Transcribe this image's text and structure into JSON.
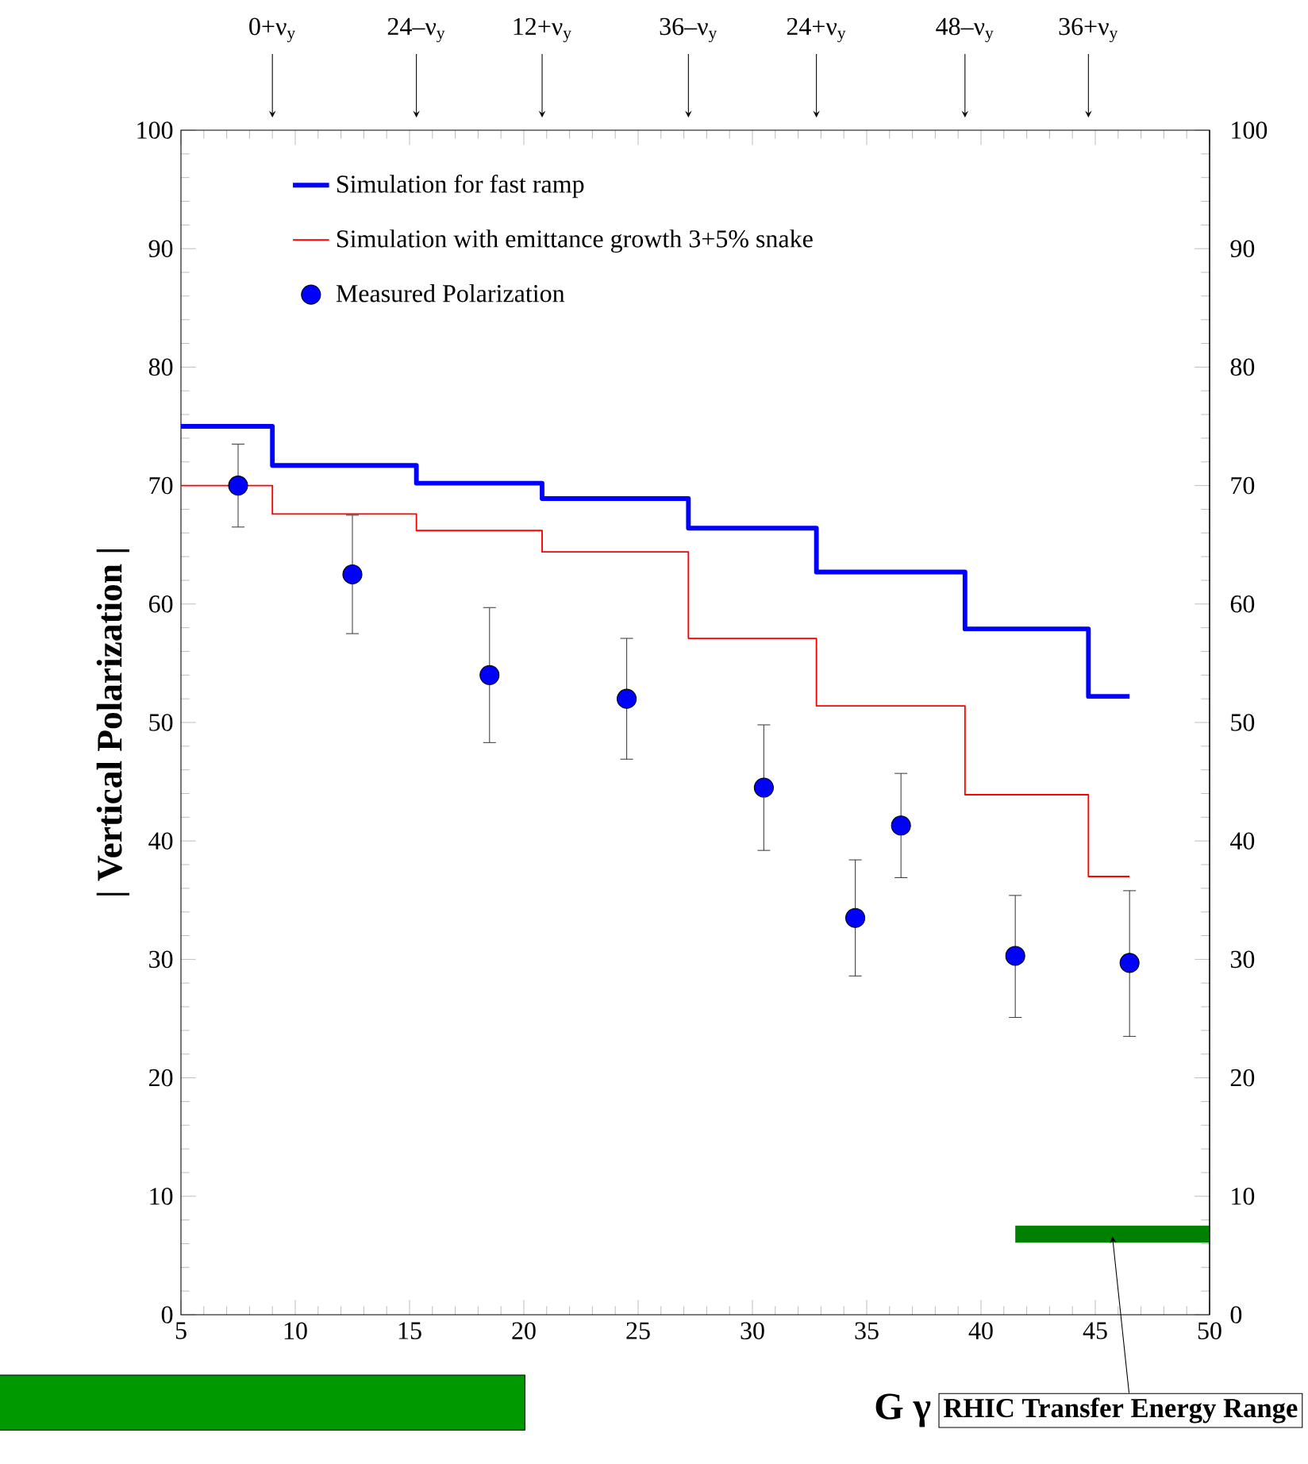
{
  "chart_data": {
    "type": "step",
    "xlabel": "G γ",
    "ylabel": "| Vertical Polarization |",
    "xlim": [
      5,
      50
    ],
    "ylim": [
      0,
      100
    ],
    "xticks": [
      5,
      10,
      15,
      20,
      25,
      30,
      35,
      40,
      45,
      50
    ],
    "yticks": [
      0,
      10,
      20,
      30,
      40,
      50,
      60,
      70,
      80,
      90,
      100
    ],
    "y2lim": [
      0,
      100
    ],
    "y2ticks": [
      0,
      10,
      20,
      30,
      40,
      50,
      60,
      70,
      80,
      90,
      100
    ],
    "legend": "top left",
    "marker": "none",
    "series": [
      {
        "name": "Simulation for fast ramp",
        "color": "#0000ff",
        "x": [
          5,
          9,
          15.3,
          20.8,
          27.2,
          32.8,
          39.3,
          44.7,
          46.5
        ],
        "values": [
          75,
          71.7,
          70.2,
          68.9,
          66.4,
          62.7,
          57.9,
          52.2,
          52.2
        ]
      },
      {
        "name": "Simulation with emittance growth 3+5% snake",
        "color": "#ff0000",
        "x": [
          5,
          9,
          15.3,
          20.8,
          27.2,
          32.8,
          39.3,
          44.7,
          46.5
        ],
        "values": [
          70,
          67.6,
          66.2,
          64.4,
          57.1,
          51.4,
          43.9,
          37,
          37
        ]
      },
      {
        "name": "Measured Polarization",
        "type": "scatter",
        "marker": "circle",
        "color": "#0000ff",
        "x": [
          7.5,
          12.5,
          18.5,
          24.5,
          30.5,
          34.5,
          36.5,
          41.5,
          46.5
        ],
        "values": [
          70,
          62.5,
          54,
          52,
          44.5,
          33.5,
          41.3,
          30.3,
          29.7
        ],
        "errors": [
          [
            66.5,
            73.5
          ],
          [
            57.5,
            67.5
          ],
          [
            48.3,
            59.7
          ],
          [
            46.9,
            57.1
          ],
          [
            39.2,
            49.8
          ],
          [
            28.6,
            38.4
          ],
          [
            36.9,
            45.7
          ],
          [
            25.1,
            35.4
          ],
          [
            23.5,
            35.8
          ]
        ]
      },
      {
        "name": "RHIC Transfer Energy Range",
        "type": "line",
        "color": "#008000",
        "x": [
          41.5,
          50
        ],
        "values": [
          6.8,
          6.8
        ]
      }
    ],
    "annotations": [
      {
        "text": "0+ν$_{y}$",
        "x": 9
      },
      {
        "text": "24–ν$_{y}$",
        "x": 15.3
      },
      {
        "text": "12+ν$_{y}$",
        "x": 20.8
      },
      {
        "text": "36–ν$_{y}$",
        "x": 27.2
      },
      {
        "text": "24+ν$_{y}$",
        "x": 32.8
      },
      {
        "text": "48–ν$_{y}$",
        "x": 39.3
      },
      {
        "text": "36+ν$_{y}$",
        "x": 44.7
      }
    ]
  }
}
